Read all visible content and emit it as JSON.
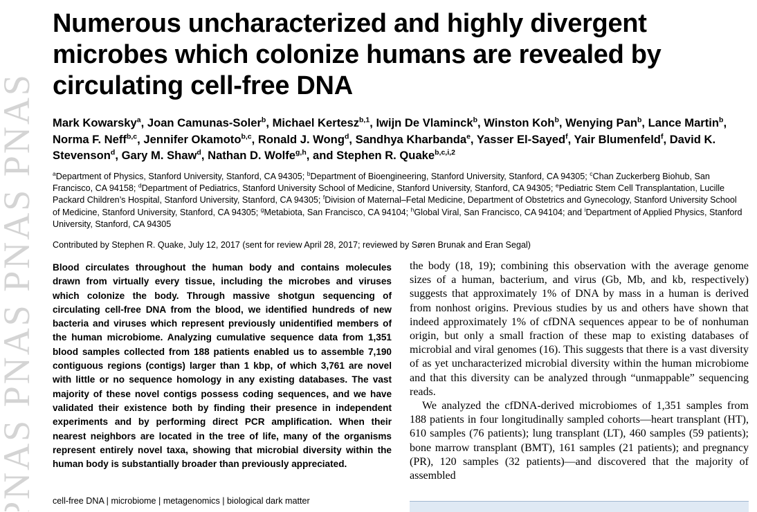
{
  "journal": {
    "watermark": "PNAS PNAS PNAS PNAS"
  },
  "title": "Numerous uncharacterized and highly divergent microbes which colonize humans are revealed by circulating cell-free DNA",
  "authors": [
    {
      "name": "Mark Kowarsky",
      "sup": "a"
    },
    {
      "name": "Joan Camunas-Soler",
      "sup": "b"
    },
    {
      "name": "Michael Kertesz",
      "sup": "b,1"
    },
    {
      "name": "Iwijn De Vlaminck",
      "sup": "b"
    },
    {
      "name": "Winston Koh",
      "sup": "b"
    },
    {
      "name": "Wenying Pan",
      "sup": "b"
    },
    {
      "name": "Lance Martin",
      "sup": "b"
    },
    {
      "name": "Norma F. Neff",
      "sup": "b,c"
    },
    {
      "name": "Jennifer Okamoto",
      "sup": "b,c"
    },
    {
      "name": "Ronald J. Wong",
      "sup": "d"
    },
    {
      "name": "Sandhya Kharbanda",
      "sup": "e"
    },
    {
      "name": "Yasser El-Sayed",
      "sup": "f"
    },
    {
      "name": "Yair Blumenfeld",
      "sup": "f"
    },
    {
      "name": "David K. Stevenson",
      "sup": "d"
    },
    {
      "name": "Gary M. Shaw",
      "sup": "d"
    },
    {
      "name": "Nathan D. Wolfe",
      "sup": "g,h"
    },
    {
      "name": "Stephen R. Quake",
      "sup": "b,c,i,2"
    }
  ],
  "author_conjunction": "and",
  "affiliations": [
    {
      "sup": "a",
      "text": "Department of Physics, Stanford University, Stanford, CA 94305;"
    },
    {
      "sup": "b",
      "text": "Department of Bioengineering, Stanford University, Stanford, CA 94305;"
    },
    {
      "sup": "c",
      "text": "Chan Zuckerberg Biohub, San Francisco, CA 94158;"
    },
    {
      "sup": "d",
      "text": "Department of Pediatrics, Stanford University School of Medicine, Stanford University, Stanford, CA 94305;"
    },
    {
      "sup": "e",
      "text": "Pediatric Stem Cell Transplantation, Lucille Packard Children’s Hospital, Stanford University, Stanford, CA 94305;"
    },
    {
      "sup": "f",
      "text": "Division of Maternal–Fetal Medicine, Department of Obstetrics and Gynecology, Stanford University School of Medicine, Stanford University, Stanford, CA 94305;"
    },
    {
      "sup": "g",
      "text": "Metabiota, San Francisco, CA 94104;"
    },
    {
      "sup": "h",
      "text": "Global Viral, San Francisco, CA 94104; and"
    },
    {
      "sup": "i",
      "text": "Department of Applied Physics, Stanford University, Stanford, CA 94305"
    }
  ],
  "contributed": "Contributed by Stephen R. Quake, July 12, 2017 (sent for review April 28, 2017; reviewed by Søren Brunak and Eran Segal)",
  "significance": "Blood circulates throughout the human body and contains molecules drawn from virtually every tissue, including the microbes and viruses which colonize the body. Through massive shotgun sequencing of circulating cell-free DNA from the blood, we identified hundreds of new bacteria and viruses which represent previously unidentified members of the human microbiome. Analyzing cumulative sequence data from 1,351 blood samples collected from 188 patients enabled us to assemble 7,190 contiguous regions (contigs) larger than 1 kbp, of which 3,761 are novel with little or no sequence homology in any existing databases. The vast majority of these novel contigs possess coding sequences, and we have validated their existence both by finding their presence in independent experiments and by performing direct PCR amplification. When their nearest neighbors are located in the tree of life, many of the organisms represent entirely novel taxa, showing that microbial diversity within the human body is substantially broader than previously appreciated.",
  "keywords": [
    "cell-free DNA",
    "microbiome",
    "metagenomics",
    "biological dark matter"
  ],
  "body": [
    "the body (18, 19); combining this observation with the average genome sizes of a human, bacterium, and virus (Gb, Mb, and kb, respectively) suggests that approximately 1% of DNA by mass in a human is derived from nonhost origins. Previous studies by us and others have shown that indeed approximately 1% of cfDNA sequences appear to be of nonhuman origin, but only a small fraction of these map to existing databases of microbial and viral genomes (16). This suggests that there is a vast diversity of as yet uncharacterized microbial diversity within the human microbiome and that this diversity can be analyzed through “unmappable” sequencing reads.",
    "We analyzed the cfDNA-derived microbiomes of 1,351 samples from 188 patients in four longitudinally sampled cohorts—heart transplant (HT), 610 samples (76 patients); lung transplant (LT), 460 samples (59 patients); bone marrow transplant (BMT), 161 samples (21 patients); and pregnancy (PR), 120 samples (32 patients)—and discovered that the majority of assembled"
  ]
}
